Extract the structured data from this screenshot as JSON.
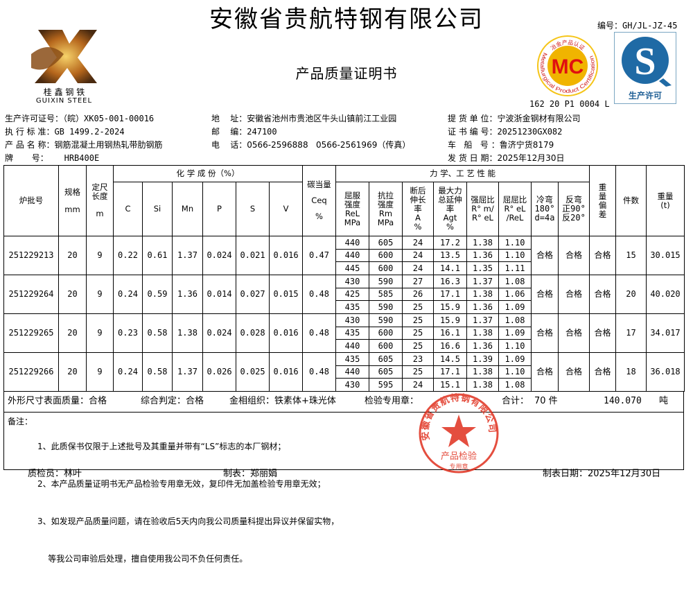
{
  "company_title": "安徽省贵航特钢有限公司",
  "doc_title": "产品质量证明书",
  "doc_number": "编号：GH/JL-JZ-45",
  "logo": {
    "cn": "桂 鑫 钢 铁",
    "en": "GUIXIN  STEEL"
  },
  "mc_logo": {
    "letters": "MC",
    "top_text": "冶金产品认证",
    "bottom_text": "Metallurgical Product Certification",
    "code": "162 20 P1 0004 L"
  },
  "qs_logo": {
    "letter": "S",
    "text": "生产许可"
  },
  "info": {
    "license": {
      "label": "生产许可证号：",
      "value": "（皖）XK05-001-00016"
    },
    "standard": {
      "label": "执 行 标 准：",
      "value": "GB 1499.2-2024"
    },
    "product": {
      "label": "产 品 名 称：",
      "value": "钢筋混凝土用钢热轧带肋钢筋"
    },
    "grade": {
      "label": "牌       号：",
      "value": "HRB400E"
    },
    "address": {
      "label": "地    址：",
      "value": "安徽省池州市贵池区牛头山镇前江工业园"
    },
    "postcode": {
      "label": "邮    编：",
      "value": "247100"
    },
    "phone": {
      "label": "电    话：",
      "value": "0566-2596888   0566-2561969（传真）"
    },
    "consignee": {
      "label": "提 货 单 位：",
      "value": "宁波浙金钢材有限公司"
    },
    "cert_no": {
      "label": "证 书 编 号：",
      "value": "20251230GX082"
    },
    "vehicle": {
      "label": "车   船   号 ：",
      "value": "鲁济宁货8179"
    },
    "ship_date": {
      "label": "发 货 日 期：",
      "value": "2025年12月30日"
    }
  },
  "table": {
    "headers": {
      "batch": "炉批号",
      "spec": "规格",
      "spec_unit": "mm",
      "length": "定尺长度",
      "length_unit": "m",
      "chem_group": "化 学 成 份（%）",
      "chem": [
        "C",
        "Si",
        "Mn",
        "P",
        "S",
        "V"
      ],
      "ceq": "碳当量",
      "ceq_sym": "Ceq",
      "ceq_unit": "%",
      "mech_group": "力 学、工 艺 性 能",
      "mech": [
        "屈服强度ReLMPa",
        "抗拉强度RmMPa",
        "断后伸长率A%",
        "最大力总延伸率Agt%",
        "强屈比R° m/R° eL",
        "屈屈比R° eL/ReL",
        "冷弯180°d=4a",
        "反弯正90°反20°"
      ],
      "mech_lines": [
        [
          "屈服",
          "强度",
          "ReL",
          "MPa"
        ],
        [
          "抗拉",
          "强度",
          "Rm",
          "MPa"
        ],
        [
          "断后",
          "伸长",
          "率",
          "A",
          "%"
        ],
        [
          "最大力",
          "总延伸",
          "率",
          "Agt",
          "%"
        ],
        [
          "强屈比",
          "R° m/",
          "R° eL"
        ],
        [
          "屈屈比",
          "R° eL",
          "/ReL"
        ],
        [
          "冷弯",
          "180°",
          "d=4a"
        ],
        [
          "反弯",
          "正90°",
          "反20°"
        ]
      ],
      "weight_dev": "重量偏差",
      "count": "件数",
      "weight": "重量(t)"
    },
    "rows": [
      {
        "batch": "251229213",
        "spec": "20",
        "length": "9",
        "chem": [
          "0.22",
          "0.61",
          "1.37",
          "0.024",
          "0.021",
          "0.016"
        ],
        "ceq": "0.47",
        "mech": [
          [
            "440",
            "605",
            "24",
            "17.2",
            "1.38",
            "1.10"
          ],
          [
            "440",
            "600",
            "24",
            "13.5",
            "1.36",
            "1.10"
          ],
          [
            "445",
            "600",
            "24",
            "14.1",
            "1.35",
            "1.11"
          ]
        ],
        "cold_bend": "合格",
        "reverse_bend": "合格",
        "weight_dev": "合格",
        "count": "15",
        "weight": "30.015"
      },
      {
        "batch": "251229264",
        "spec": "20",
        "length": "9",
        "chem": [
          "0.24",
          "0.59",
          "1.36",
          "0.014",
          "0.027",
          "0.015"
        ],
        "ceq": "0.48",
        "mech": [
          [
            "430",
            "590",
            "27",
            "16.3",
            "1.37",
            "1.08"
          ],
          [
            "425",
            "585",
            "26",
            "17.1",
            "1.38",
            "1.06"
          ],
          [
            "435",
            "590",
            "25",
            "15.9",
            "1.36",
            "1.09"
          ]
        ],
        "cold_bend": "合格",
        "reverse_bend": "合格",
        "weight_dev": "合格",
        "count": "20",
        "weight": "40.020"
      },
      {
        "batch": "251229265",
        "spec": "20",
        "length": "9",
        "chem": [
          "0.23",
          "0.58",
          "1.38",
          "0.024",
          "0.028",
          "0.016"
        ],
        "ceq": "0.48",
        "mech": [
          [
            "430",
            "590",
            "25",
            "15.9",
            "1.37",
            "1.08"
          ],
          [
            "435",
            "600",
            "25",
            "16.1",
            "1.38",
            "1.09"
          ],
          [
            "440",
            "600",
            "25",
            "16.6",
            "1.36",
            "1.10"
          ]
        ],
        "cold_bend": "合格",
        "reverse_bend": "合格",
        "weight_dev": "合格",
        "count": "17",
        "weight": "34.017"
      },
      {
        "batch": "251229266",
        "spec": "20",
        "length": "9",
        "chem": [
          "0.24",
          "0.58",
          "1.37",
          "0.026",
          "0.025",
          "0.016"
        ],
        "ceq": "0.48",
        "mech": [
          [
            "435",
            "605",
            "23",
            "14.5",
            "1.39",
            "1.09"
          ],
          [
            "440",
            "605",
            "25",
            "17.1",
            "1.38",
            "1.10"
          ],
          [
            "430",
            "595",
            "24",
            "15.1",
            "1.38",
            "1.08"
          ]
        ],
        "cold_bend": "合格",
        "reverse_bend": "合格",
        "weight_dev": "合格",
        "count": "18",
        "weight": "36.018"
      }
    ]
  },
  "summary": {
    "appearance": "外形尺寸表面质量：合格",
    "judgement": "综合判定：合格",
    "structure": "金相组织：铁素体+珠光体",
    "stamp_label": "检验专用章：",
    "total_label": "合计：",
    "total_count": "70 件",
    "total_weight": "140.070",
    "weight_unit": "吨"
  },
  "notes": {
    "label": "备注：",
    "items": [
      "1、此质保书仅限于上述批号及其重量并带有“LS”标志的本厂钢材；",
      "2、本产品质量证明书无产品检验专用章无效，复印件无加盖检验专用章无效；",
      "3、如发现产品质量问题，请在验收后5天内向我公司质量科提出异议并保留实物，",
      "    等我公司审验后处理，擅自使用我公司不负任何责任。"
    ]
  },
  "stamp": {
    "ring_text": "安徽省贵航特钢有限公司",
    "center_text": "产品检验",
    "bottom_text": "专用章",
    "color": "#e0301e"
  },
  "footer": {
    "inspector": "质检员：林叶",
    "preparer": "制表：郑丽娟",
    "date": "制表日期：2025年12月30日"
  }
}
